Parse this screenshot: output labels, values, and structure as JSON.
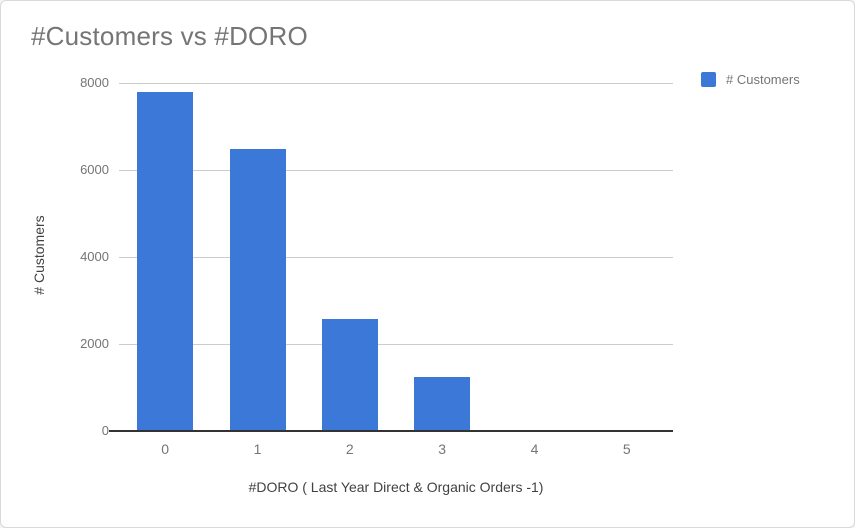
{
  "window": {
    "background": "#ffffff",
    "border_color": "#d9d9d9"
  },
  "chart": {
    "title": "#Customers vs #DORO",
    "legend": {
      "label": "# Customers"
    },
    "colors": {
      "bar": "#3c78d8",
      "title_text": "#757575",
      "tick_label": "#757575",
      "axis_title": "#424242",
      "gridline": "#cccccc",
      "axis_line": "#333333"
    }
  },
  "chart_data": {
    "type": "bar",
    "title": "#Customers vs #DORO",
    "categories": [
      "0",
      "1",
      "2",
      "3",
      "4",
      "5"
    ],
    "series": [
      {
        "name": "# Customers",
        "values": [
          7790,
          6490,
          2570,
          1250,
          0,
          0
        ]
      }
    ],
    "xlabel": "#DORO ( Last Year Direct & Organic Orders -1)",
    "ylabel": "# Customers",
    "ylim": [
      0,
      8000
    ],
    "yticks": [
      0,
      2000,
      4000,
      6000,
      8000
    ],
    "grid": true,
    "legend_position": "top-right",
    "bar_color": "#3c78d8"
  }
}
